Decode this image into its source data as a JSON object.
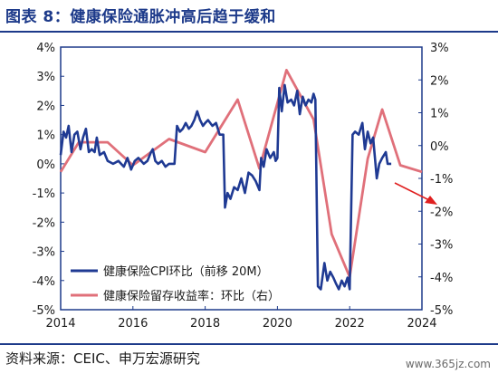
{
  "header": {
    "title": "图表 8：健康保险通胀冲高后趋于缓和"
  },
  "footer": {
    "source": "资料来源：CEIC、申万宏源研究",
    "watermark": "www.365jz.com"
  },
  "colors": {
    "cpi": "#1f3a93",
    "rate": "#e0707a",
    "frame": "#1d3a8a",
    "arrow": "#e02020"
  },
  "chart_data": {
    "type": "line",
    "x_range": [
      2014,
      2024
    ],
    "x_ticks": [
      "2014",
      "2016",
      "2018",
      "2020",
      "2022",
      "2024"
    ],
    "y_left_ticks": [
      "4%",
      "3%",
      "2%",
      "1%",
      "0%",
      "-1%",
      "-2%",
      "-3%",
      "-4%",
      "-5%"
    ],
    "y_left_range": [
      -5,
      4
    ],
    "y_right_ticks": [
      "3%",
      "2%",
      "1%",
      "0%",
      "-1%",
      "-2%",
      "-3%",
      "-4%",
      "-5%"
    ],
    "y_right_range": [
      -5,
      3
    ],
    "legend": [
      {
        "label": "健康保险CPI环比（前移 20M）"
      },
      {
        "label": "健康保险留存收益率：环比（右）"
      }
    ],
    "series": [
      {
        "name": "健康保险CPI环比（前移 20M）",
        "axis": "left",
        "points": [
          [
            2014.0,
            0.3
          ],
          [
            2014.08,
            1.1
          ],
          [
            2014.15,
            0.9
          ],
          [
            2014.22,
            1.3
          ],
          [
            2014.3,
            0.4
          ],
          [
            2014.38,
            1.0
          ],
          [
            2014.46,
            1.1
          ],
          [
            2014.55,
            0.5
          ],
          [
            2014.62,
            0.9
          ],
          [
            2014.7,
            1.2
          ],
          [
            2014.78,
            0.4
          ],
          [
            2014.86,
            0.5
          ],
          [
            2014.94,
            0.4
          ],
          [
            2015.0,
            0.9
          ],
          [
            2015.08,
            0.3
          ],
          [
            2015.2,
            0.4
          ],
          [
            2015.3,
            0.1
          ],
          [
            2015.45,
            0.0
          ],
          [
            2015.6,
            0.1
          ],
          [
            2015.75,
            -0.1
          ],
          [
            2015.85,
            0.2
          ],
          [
            2015.95,
            -0.2
          ],
          [
            2016.05,
            0.1
          ],
          [
            2016.15,
            0.2
          ],
          [
            2016.3,
            0.0
          ],
          [
            2016.4,
            0.1
          ],
          [
            2016.5,
            0.4
          ],
          [
            2016.55,
            0.5
          ],
          [
            2016.62,
            0.1
          ],
          [
            2016.7,
            0.0
          ],
          [
            2016.8,
            0.1
          ],
          [
            2016.9,
            -0.1
          ],
          [
            2017.0,
            0.0
          ],
          [
            2017.15,
            0.0
          ],
          [
            2017.22,
            1.3
          ],
          [
            2017.3,
            1.1
          ],
          [
            2017.38,
            1.2
          ],
          [
            2017.46,
            1.4
          ],
          [
            2017.55,
            1.2
          ],
          [
            2017.62,
            1.3
          ],
          [
            2017.7,
            1.5
          ],
          [
            2017.78,
            1.8
          ],
          [
            2017.86,
            1.5
          ],
          [
            2017.94,
            1.3
          ],
          [
            2018.0,
            1.4
          ],
          [
            2018.08,
            1.5
          ],
          [
            2018.2,
            1.3
          ],
          [
            2018.3,
            1.4
          ],
          [
            2018.4,
            1.0
          ],
          [
            2018.5,
            1.0
          ],
          [
            2018.55,
            -1.5
          ],
          [
            2018.62,
            -1.0
          ],
          [
            2018.7,
            -1.2
          ],
          [
            2018.8,
            -0.8
          ],
          [
            2018.9,
            -0.9
          ],
          [
            2019.0,
            -0.5
          ],
          [
            2019.1,
            -1.0
          ],
          [
            2019.2,
            -0.3
          ],
          [
            2019.3,
            -0.4
          ],
          [
            2019.4,
            -0.6
          ],
          [
            2019.5,
            -0.9
          ],
          [
            2019.55,
            0.2
          ],
          [
            2019.62,
            -0.1
          ],
          [
            2019.7,
            0.5
          ],
          [
            2019.8,
            0.2
          ],
          [
            2019.9,
            0.4
          ],
          [
            2019.95,
            0.1
          ],
          [
            2020.0,
            0.2
          ],
          [
            2020.05,
            2.6
          ],
          [
            2020.12,
            1.8
          ],
          [
            2020.2,
            2.7
          ],
          [
            2020.28,
            2.1
          ],
          [
            2020.38,
            2.2
          ],
          [
            2020.46,
            2.0
          ],
          [
            2020.55,
            2.5
          ],
          [
            2020.62,
            1.7
          ],
          [
            2020.7,
            2.3
          ],
          [
            2020.78,
            2.0
          ],
          [
            2020.86,
            2.2
          ],
          [
            2020.94,
            2.1
          ],
          [
            2021.0,
            2.4
          ],
          [
            2021.05,
            2.2
          ],
          [
            2021.12,
            -4.2
          ],
          [
            2021.2,
            -4.3
          ],
          [
            2021.3,
            -3.4
          ],
          [
            2021.38,
            -4.0
          ],
          [
            2021.46,
            -3.7
          ],
          [
            2021.55,
            -3.9
          ],
          [
            2021.62,
            -4.1
          ],
          [
            2021.7,
            -4.3
          ],
          [
            2021.78,
            -4.0
          ],
          [
            2021.86,
            -4.2
          ],
          [
            2021.94,
            -3.9
          ],
          [
            2022.0,
            -4.3
          ],
          [
            2022.08,
            1.0
          ],
          [
            2022.15,
            1.1
          ],
          [
            2022.25,
            1.0
          ],
          [
            2022.35,
            1.4
          ],
          [
            2022.42,
            0.5
          ],
          [
            2022.5,
            1.1
          ],
          [
            2022.58,
            0.7
          ],
          [
            2022.65,
            0.9
          ],
          [
            2022.75,
            -0.5
          ],
          [
            2022.82,
            0.0
          ],
          [
            2022.9,
            0.2
          ],
          [
            2023.0,
            0.4
          ],
          [
            2023.05,
            0.0
          ],
          [
            2023.15,
            0.0
          ]
        ]
      },
      {
        "name": "健康保险留存收益率：环比（右）",
        "axis": "right",
        "points": [
          [
            2014.0,
            -0.8
          ],
          [
            2014.5,
            0.1
          ],
          [
            2015.3,
            0.1
          ],
          [
            2016.0,
            -0.6
          ],
          [
            2017.0,
            0.2
          ],
          [
            2018.0,
            -0.2
          ],
          [
            2018.9,
            1.4
          ],
          [
            2019.5,
            -0.7
          ],
          [
            2020.25,
            2.3
          ],
          [
            2021.0,
            0.8
          ],
          [
            2021.5,
            -2.7
          ],
          [
            2022.0,
            -4.0
          ],
          [
            2022.5,
            -0.4
          ],
          [
            2022.9,
            1.1
          ],
          [
            2023.4,
            -0.6
          ],
          [
            2024.0,
            -0.8
          ]
        ]
      }
    ]
  }
}
